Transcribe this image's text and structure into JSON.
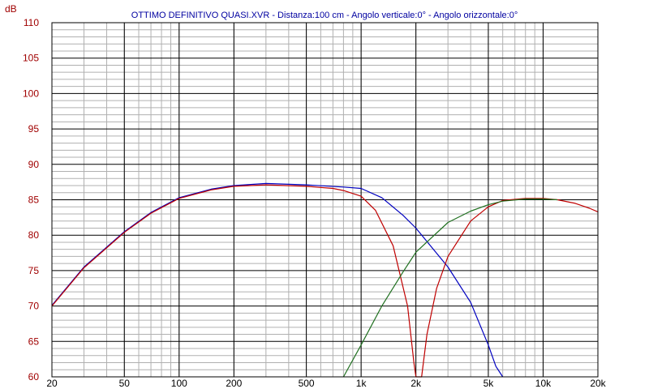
{
  "chart_data": {
    "type": "line",
    "title": "OTTIMO DEFINITIVO QUASI.XVR - Distanza:100 cm - Angolo verticale:0° - Angolo orizzontale:0°",
    "ylabel": "dB",
    "xlabel": "",
    "x_scale": "log",
    "xlim": [
      20,
      20000
    ],
    "ylim": [
      60,
      110
    ],
    "grid": true,
    "x_ticks": [
      {
        "value": 20,
        "label": "20"
      },
      {
        "value": 50,
        "label": "50"
      },
      {
        "value": 100,
        "label": "100"
      },
      {
        "value": 200,
        "label": "200"
      },
      {
        "value": 500,
        "label": "500"
      },
      {
        "value": 1000,
        "label": "1k"
      },
      {
        "value": 2000,
        "label": "2k"
      },
      {
        "value": 5000,
        "label": "5k"
      },
      {
        "value": 10000,
        "label": "10k"
      },
      {
        "value": 20000,
        "label": "20k"
      }
    ],
    "y_ticks": [
      60,
      65,
      70,
      75,
      80,
      85,
      90,
      95,
      100,
      105,
      110
    ],
    "series": [
      {
        "color": "#0000c0",
        "points": [
          [
            20,
            70.1
          ],
          [
            30,
            75.5
          ],
          [
            50,
            80.5
          ],
          [
            70,
            83.2
          ],
          [
            100,
            85.3
          ],
          [
            150,
            86.5
          ],
          [
            200,
            87.0
          ],
          [
            300,
            87.3
          ],
          [
            500,
            87.1
          ],
          [
            800,
            86.8
          ],
          [
            1000,
            86.6
          ],
          [
            1300,
            85.3
          ],
          [
            1700,
            82.8
          ],
          [
            2000,
            81.0
          ],
          [
            3000,
            75.5
          ],
          [
            4000,
            70.5
          ],
          [
            5000,
            64.5
          ],
          [
            5500,
            61.5
          ],
          [
            6000,
            60
          ]
        ]
      },
      {
        "color": "#c00000",
        "points": [
          [
            20,
            70.0
          ],
          [
            30,
            75.4
          ],
          [
            50,
            80.4
          ],
          [
            70,
            83.1
          ],
          [
            100,
            85.2
          ],
          [
            150,
            86.4
          ],
          [
            200,
            86.9
          ],
          [
            300,
            87.1
          ],
          [
            500,
            86.9
          ],
          [
            700,
            86.6
          ],
          [
            800,
            86.3
          ],
          [
            1000,
            85.5
          ],
          [
            1200,
            83.5
          ],
          [
            1500,
            78.5
          ],
          [
            1800,
            70.0
          ],
          [
            1950,
            62.0
          ],
          [
            2000,
            60
          ],
          [
            2150,
            60
          ],
          [
            2300,
            66.0
          ],
          [
            2600,
            72.5
          ],
          [
            3000,
            77.0
          ],
          [
            4000,
            82.0
          ],
          [
            5000,
            84.0
          ],
          [
            6000,
            84.9
          ],
          [
            8000,
            85.2
          ],
          [
            10000,
            85.2
          ],
          [
            12000,
            85.0
          ],
          [
            15000,
            84.5
          ],
          [
            18000,
            83.8
          ],
          [
            20000,
            83.3
          ]
        ]
      },
      {
        "color": "#207020",
        "points": [
          [
            800,
            60
          ],
          [
            1000,
            64.5
          ],
          [
            1300,
            70.0
          ],
          [
            1700,
            74.8
          ],
          [
            2000,
            77.6
          ],
          [
            3000,
            81.8
          ],
          [
            4000,
            83.4
          ],
          [
            5000,
            84.3
          ],
          [
            6000,
            84.8
          ],
          [
            8000,
            85.1
          ],
          [
            10000,
            85.1
          ],
          [
            12000,
            85.0
          ]
        ]
      }
    ]
  }
}
